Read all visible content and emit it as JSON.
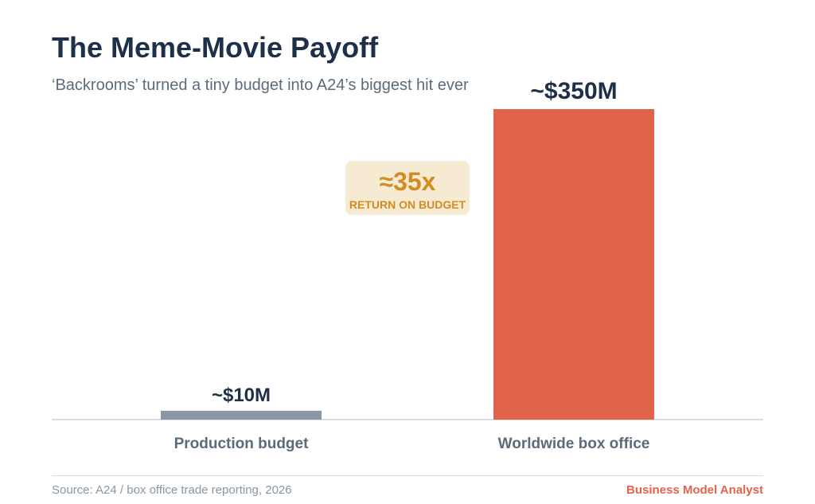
{
  "title": "The Meme-Movie Payoff",
  "subtitle": "‘Backrooms’ turned a tiny budget into A24’s biggest hit ever",
  "callout": {
    "value": "≈35x",
    "label": "RETURN ON BUDGET"
  },
  "footer": {
    "source": "Source: A24 / box office trade reporting, 2026",
    "brand": "Business Model Analyst"
  },
  "colors": {
    "budget_bar": "#8c97a6",
    "box_office_bar": "#e0644c",
    "callout_bg": "#f7ead3",
    "callout_text": "#d18c22",
    "brand": "#e0644c"
  },
  "chart_data": {
    "type": "bar",
    "categories": [
      "Production budget",
      "Worldwide box office"
    ],
    "values": [
      10,
      350
    ],
    "value_labels": [
      "~$10M",
      "~$350M"
    ],
    "unit": "$M",
    "ylim": [
      0,
      350
    ],
    "grid": false,
    "legend": "none"
  }
}
